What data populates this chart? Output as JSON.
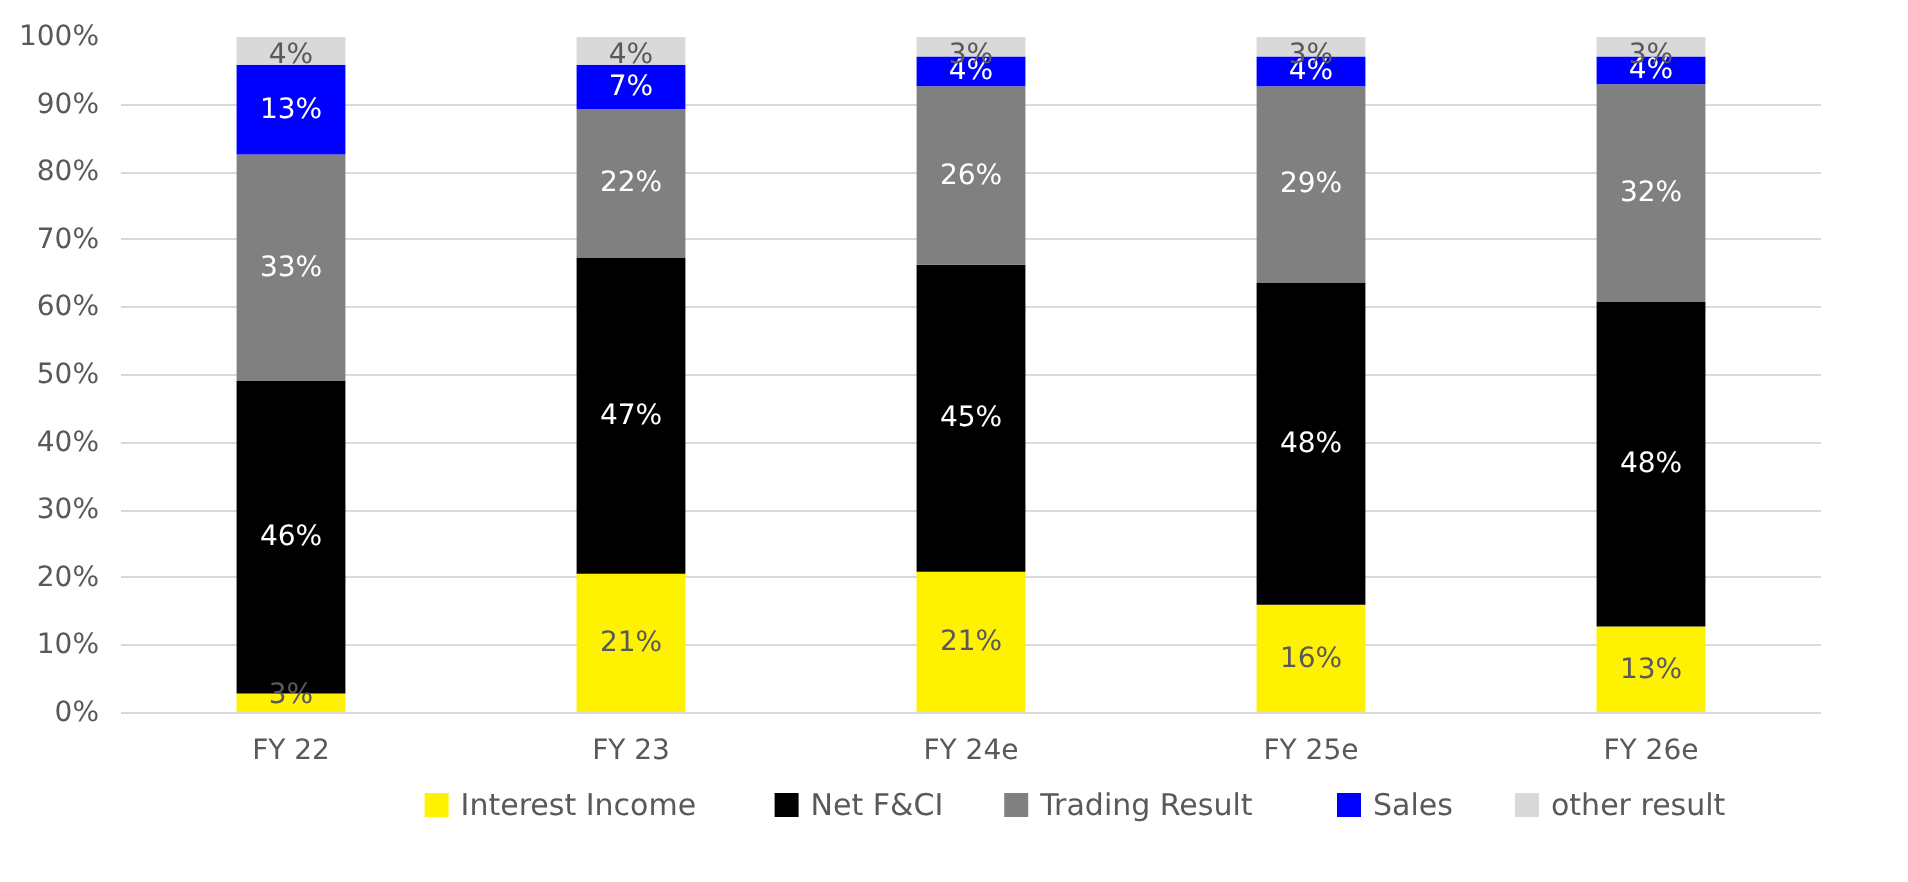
{
  "chart_data": {
    "type": "bar",
    "stacked": true,
    "categories": [
      "FY 22",
      "FY 23",
      "FY 24e",
      "FY 25e",
      "FY 26e"
    ],
    "series": [
      {
        "name": "Interest Income",
        "color": "#fff200",
        "values": [
          2.9,
          20.6,
          20.9,
          16.0,
          12.8
        ],
        "value_labels": [
          "3%",
          "21%",
          "21%",
          "16%",
          "13%"
        ]
      },
      {
        "name": "Net F&CI",
        "color": "#000000",
        "values": [
          46.2,
          46.8,
          45.4,
          47.7,
          48.0
        ],
        "value_labels": [
          "46%",
          "47%",
          "45%",
          "48%",
          "48%"
        ]
      },
      {
        "name": "Trading Result",
        "color": "#808080",
        "values": [
          33.5,
          21.9,
          26.4,
          29.0,
          32.2
        ],
        "value_labels": [
          "33%",
          "22%",
          "26%",
          "29%",
          "32%"
        ]
      },
      {
        "name": "Sales",
        "color": "#0000ff",
        "values": [
          13.3,
          6.6,
          4.4,
          4.4,
          4.1
        ],
        "value_labels": [
          "13%",
          "7%",
          "4%",
          "4%",
          "4%"
        ]
      },
      {
        "name": "other result",
        "color": "#d9d9d9",
        "values": [
          4.1,
          4.1,
          2.9,
          2.9,
          2.9
        ],
        "value_labels": [
          "4%",
          "4%",
          "3%",
          "3%",
          "3%"
        ]
      }
    ],
    "ylim": [
      0,
      100
    ],
    "yticks": [
      {
        "value": 0,
        "label": "0%"
      },
      {
        "value": 10,
        "label": "10%"
      },
      {
        "value": 20,
        "label": "20%"
      },
      {
        "value": 30,
        "label": "30%"
      },
      {
        "value": 40,
        "label": "40%"
      },
      {
        "value": 50,
        "label": "50%"
      },
      {
        "value": 60,
        "label": "60%"
      },
      {
        "value": 70,
        "label": "70%"
      },
      {
        "value": 80,
        "label": "80%"
      },
      {
        "value": 90,
        "label": "90%"
      },
      {
        "value": 100,
        "label": "100%"
      }
    ],
    "grid": "y",
    "legend": "bottom"
  }
}
